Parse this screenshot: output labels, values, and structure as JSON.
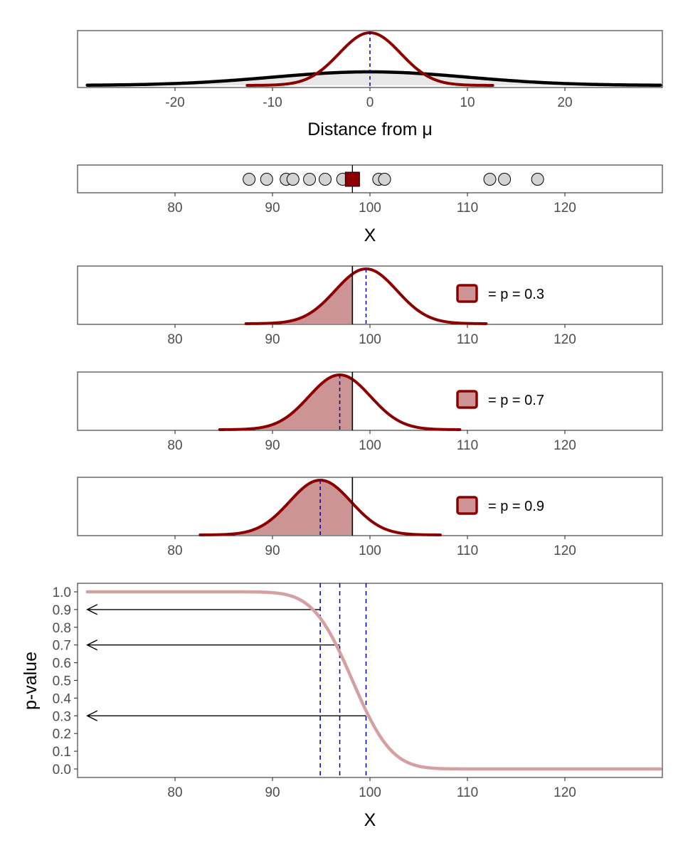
{
  "colors": {
    "dark_red": "#8B0000",
    "fill_red": "#CD9495",
    "curve_pink": "#D4A0A1",
    "navy": "#00008B",
    "black": "#000000",
    "point_fill": "#D3D3D3"
  },
  "chart_data": [
    {
      "type": "line",
      "panel": "distance-from-mu",
      "xlabel": "Distance from μ",
      "xlim": [
        -30,
        30
      ],
      "xticks": [
        -20,
        -10,
        0,
        10,
        20
      ],
      "tick_labels": [
        "-20",
        "-10",
        "0",
        "10",
        "20"
      ],
      "curves": [
        {
          "role": "sampling distribution",
          "mean": 0,
          "sd": 3.16,
          "range": [
            -12.6,
            12.6
          ],
          "color": "#8B0000"
        },
        {
          "role": "population distribution",
          "mean": 0,
          "sd": 10,
          "range": [
            -30,
            30
          ],
          "color": "#000000"
        }
      ],
      "vline_dashed": 0
    },
    {
      "type": "scatter",
      "panel": "sample",
      "xlabel": "X",
      "xlim": [
        70,
        130
      ],
      "xticks": [
        80,
        90,
        100,
        110,
        120
      ],
      "tick_labels": [
        "80",
        "90",
        "100",
        "110",
        "120"
      ],
      "points": [
        87.6,
        89.4,
        91.4,
        92.1,
        93.8,
        95.4,
        97.2,
        100.9,
        101.5,
        112.3,
        113.8,
        117.2
      ],
      "sample_mean": 98.2
    },
    {
      "type": "area",
      "panel": "mu-100",
      "xlim": [
        70,
        130
      ],
      "xticks": [
        80,
        90,
        100,
        110,
        120
      ],
      "tick_labels": [
        "80",
        "90",
        "100",
        "110",
        "120"
      ],
      "mean": 99.6,
      "sd": 3.16,
      "observed_mean": 98.2,
      "legend_label": "= p = 0.3",
      "p_value": 0.3
    },
    {
      "type": "area",
      "panel": "mu-97",
      "xlim": [
        70,
        130
      ],
      "xticks": [
        80,
        90,
        100,
        110,
        120
      ],
      "tick_labels": [
        "80",
        "90",
        "100",
        "110",
        "120"
      ],
      "mean": 96.9,
      "sd": 3.16,
      "observed_mean": 98.2,
      "legend_label": "= p = 0.7",
      "p_value": 0.7
    },
    {
      "type": "area",
      "panel": "mu-95",
      "xlim": [
        70,
        130
      ],
      "xticks": [
        80,
        90,
        100,
        110,
        120
      ],
      "tick_labels": [
        "80",
        "90",
        "100",
        "110",
        "120"
      ],
      "mean": 94.9,
      "sd": 3.16,
      "observed_mean": 98.2,
      "legend_label": "= p = 0.9",
      "p_value": 0.9
    },
    {
      "type": "line",
      "panel": "p-value-curve",
      "xlabel": "X",
      "ylabel": "p-value",
      "xlim": [
        70,
        130
      ],
      "ylim": [
        0,
        1
      ],
      "xticks": [
        80,
        90,
        100,
        110,
        120
      ],
      "tick_labels": [
        "80",
        "90",
        "100",
        "110",
        "120"
      ],
      "yticks": [
        0.0,
        0.1,
        0.2,
        0.3,
        0.4,
        0.5,
        0.6,
        0.7,
        0.8,
        0.9,
        1.0
      ],
      "ytick_labels": [
        "0.0",
        "0.1",
        "0.2",
        "0.3",
        "0.4",
        "0.5",
        "0.6",
        "0.7",
        "0.8",
        "0.9",
        "1.0"
      ],
      "curve": {
        "type": "normal upper tail",
        "center": 98.2,
        "sd": 3.16,
        "range": [
          70,
          130
        ]
      },
      "vlines_dashed": [
        94.9,
        96.9,
        99.6
      ],
      "arrows": [
        {
          "from_x": 94.9,
          "p": 0.9
        },
        {
          "from_x": 96.9,
          "p": 0.7
        },
        {
          "from_x": 99.6,
          "p": 0.3
        }
      ]
    }
  ]
}
